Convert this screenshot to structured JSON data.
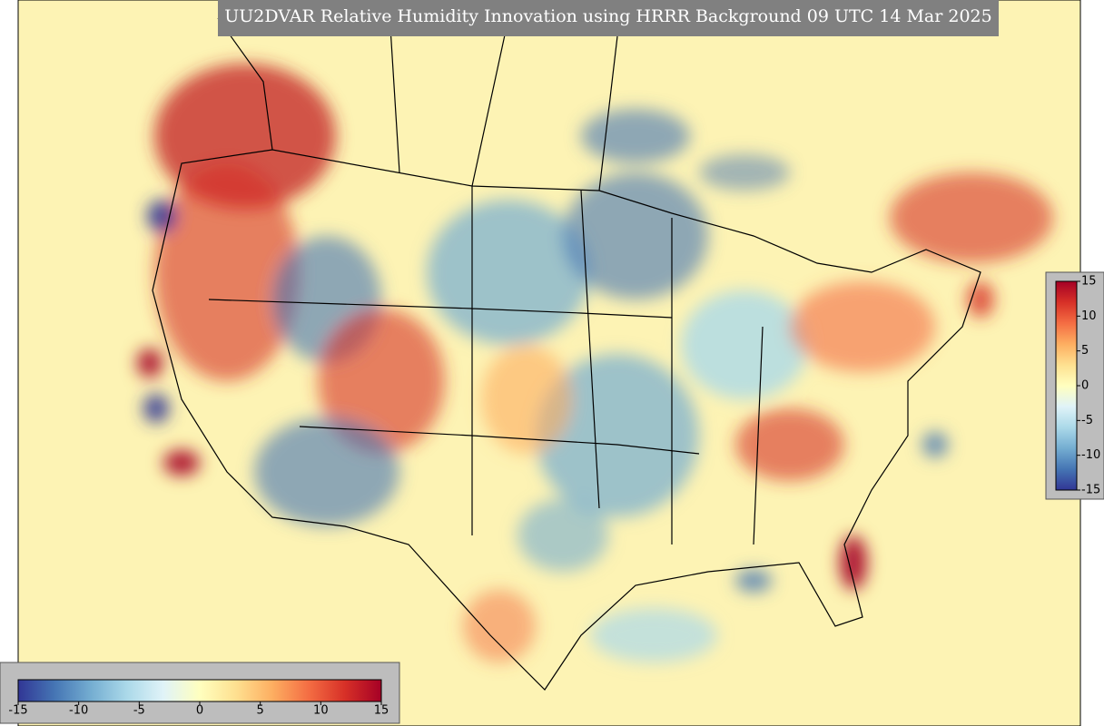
{
  "title": "UU2DVAR Relative Humidity Innovation using HRRR Background 09 UTC 14 Mar 2025",
  "colorbar": {
    "min": -15,
    "max": 15,
    "ticks": [
      -15,
      -10,
      -5,
      0,
      5,
      10,
      15
    ],
    "colors": [
      "#313695",
      "#4575b4",
      "#74add1",
      "#abd9e9",
      "#e0f3f8",
      "#ffffbf",
      "#fee090",
      "#fdae61",
      "#f46d43",
      "#d73027",
      "#a50026"
    ]
  }
}
